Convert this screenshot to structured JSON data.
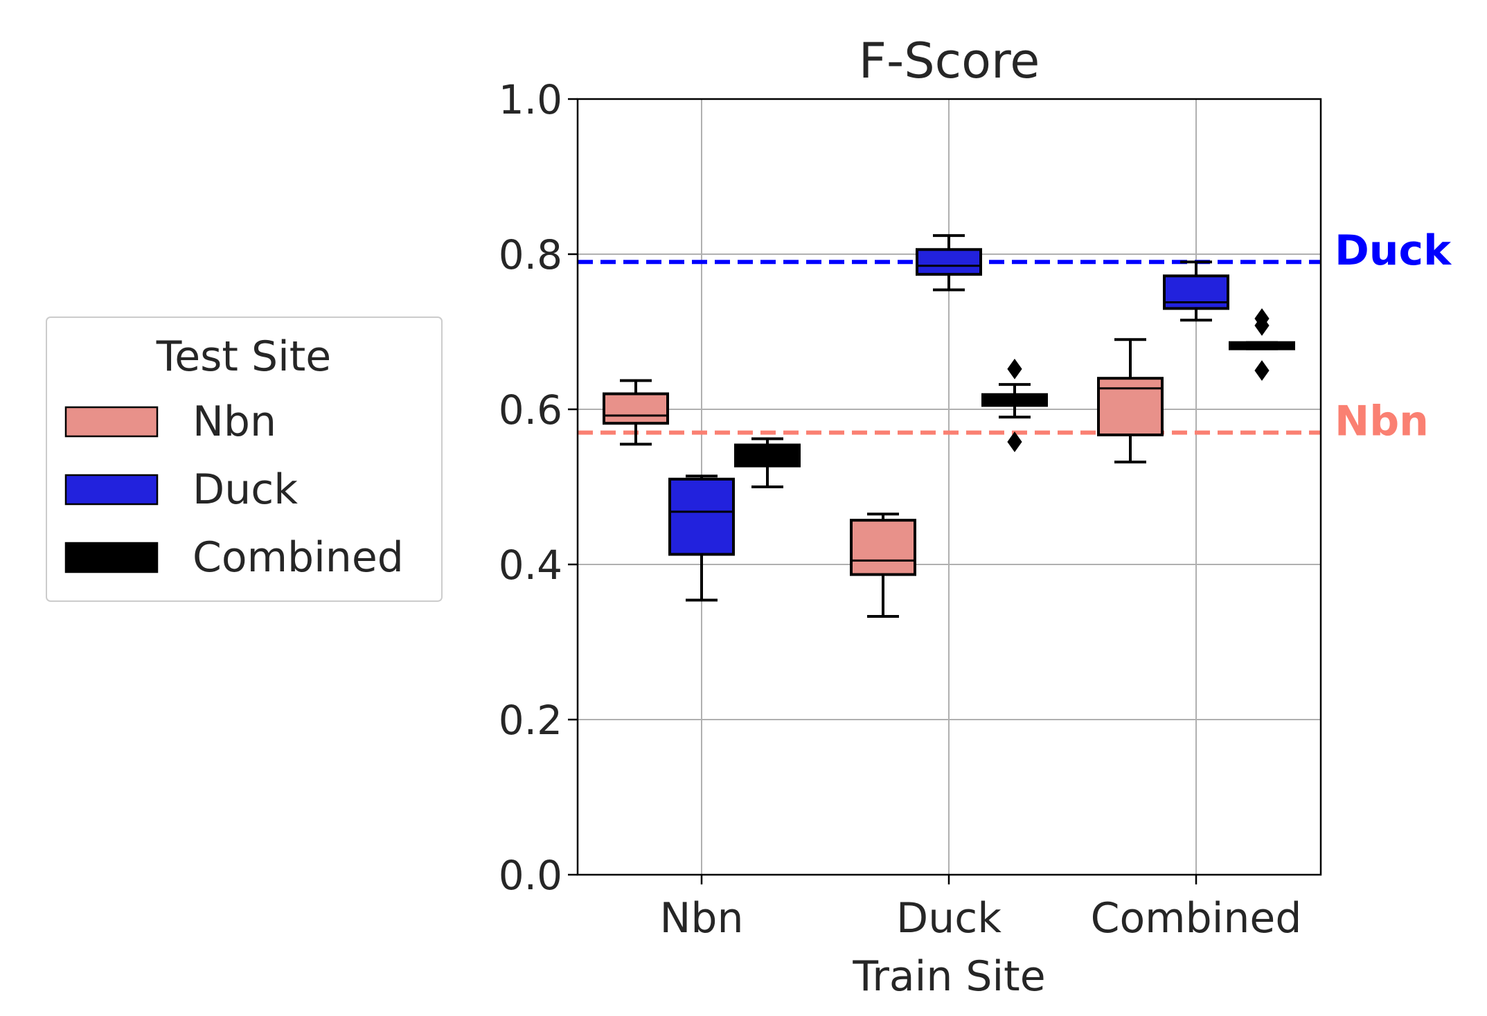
{
  "chart_data": {
    "type": "box",
    "title": "F-Score",
    "xlabel": "Train Site",
    "ylabel": "",
    "ylim": [
      0.0,
      1.0
    ],
    "yticks": [
      "0.0",
      "0.2",
      "0.4",
      "0.6",
      "0.8",
      "1.0"
    ],
    "ytick_values": [
      0.0,
      0.2,
      0.4,
      0.6,
      0.8,
      1.0
    ],
    "categories": [
      "Nbn",
      "Duck",
      "Combined"
    ],
    "grid": true,
    "legend": {
      "title": "Test Site",
      "placement": "left-outside",
      "entries": [
        {
          "label": "Nbn",
          "color": "#e8918a"
        },
        {
          "label": "Duck",
          "color": "#2222dd"
        },
        {
          "label": "Combined",
          "color": "#000000"
        }
      ]
    },
    "series": [
      {
        "name": "Nbn",
        "color": "#e8918a",
        "boxes": [
          {
            "whislo": 0.555,
            "q1": 0.582,
            "med": 0.592,
            "q3": 0.62,
            "whishi": 0.637,
            "fliers": []
          },
          {
            "whislo": 0.333,
            "q1": 0.387,
            "med": 0.405,
            "q3": 0.457,
            "whishi": 0.465,
            "fliers": []
          },
          {
            "whislo": 0.532,
            "q1": 0.567,
            "med": 0.627,
            "q3": 0.64,
            "whishi": 0.69,
            "fliers": []
          }
        ]
      },
      {
        "name": "Duck",
        "color": "#2222dd",
        "boxes": [
          {
            "whislo": 0.354,
            "q1": 0.413,
            "med": 0.468,
            "q3": 0.51,
            "whishi": 0.514,
            "fliers": []
          },
          {
            "whislo": 0.754,
            "q1": 0.774,
            "med": 0.785,
            "q3": 0.806,
            "whishi": 0.824,
            "fliers": []
          },
          {
            "whislo": 0.715,
            "q1": 0.73,
            "med": 0.738,
            "q3": 0.772,
            "whishi": 0.79,
            "fliers": []
          }
        ]
      },
      {
        "name": "Combined",
        "color": "#000000",
        "boxes": [
          {
            "whislo": 0.5,
            "q1": 0.527,
            "med": 0.54,
            "q3": 0.554,
            "whishi": 0.562,
            "fliers": []
          },
          {
            "whislo": 0.59,
            "q1": 0.605,
            "med": 0.612,
            "q3": 0.619,
            "whishi": 0.632,
            "fliers": [
              0.652,
              0.558
            ]
          },
          {
            "whislo": 0.678,
            "q1": 0.678,
            "med": 0.682,
            "q3": 0.686,
            "whishi": 0.686,
            "fliers": [
              0.717,
              0.708,
              0.65
            ]
          }
        ]
      }
    ],
    "reference_lines": [
      {
        "label": "Duck",
        "value": 0.79,
        "color": "#0000ff",
        "style": "dashed"
      },
      {
        "label": "Nbn",
        "value": 0.57,
        "color": "#fa8072",
        "style": "dashed"
      }
    ]
  }
}
